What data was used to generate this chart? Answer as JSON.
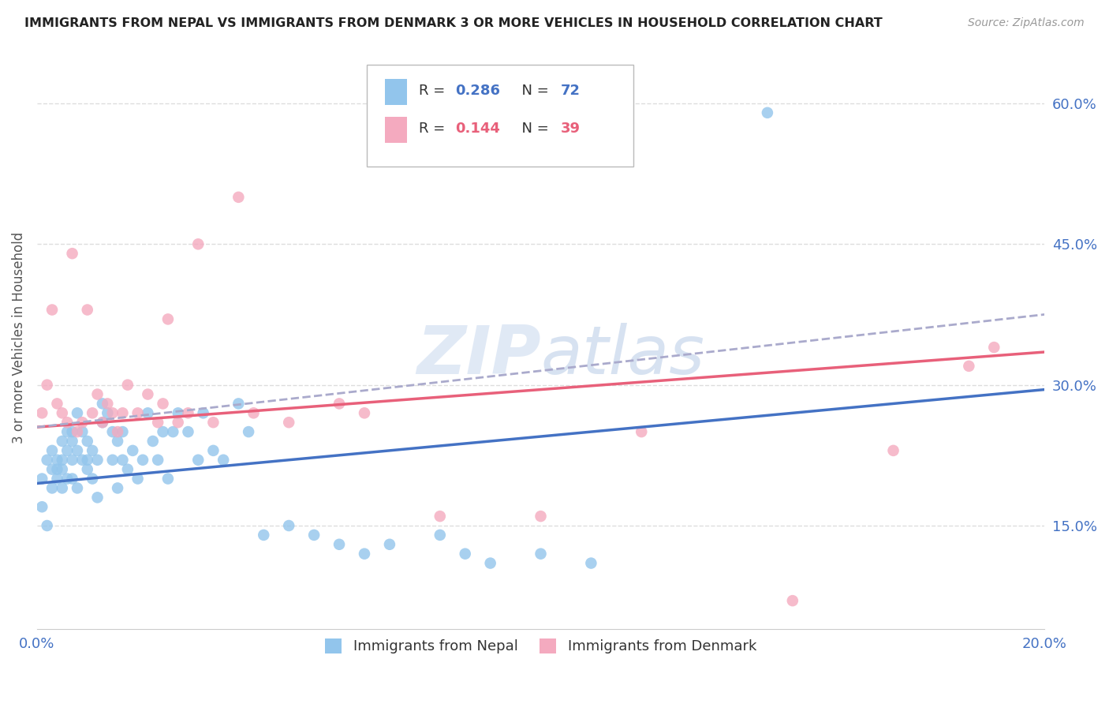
{
  "title": "IMMIGRANTS FROM NEPAL VS IMMIGRANTS FROM DENMARK 3 OR MORE VEHICLES IN HOUSEHOLD CORRELATION CHART",
  "source": "Source: ZipAtlas.com",
  "ylabel": "3 or more Vehicles in Household",
  "xlim": [
    0.0,
    0.2
  ],
  "ylim": [
    0.04,
    0.66
  ],
  "yticks_right": [
    0.15,
    0.3,
    0.45,
    0.6
  ],
  "ytick_right_labels": [
    "15.0%",
    "30.0%",
    "45.0%",
    "60.0%"
  ],
  "legend_nepal": "Immigrants from Nepal",
  "legend_denmark": "Immigrants from Denmark",
  "R_nepal": 0.286,
  "N_nepal": 72,
  "R_denmark": 0.144,
  "N_denmark": 39,
  "nepal_color": "#92C5EC",
  "denmark_color": "#F4AABF",
  "nepal_line_color": "#4472C4",
  "denmark_line_color": "#E8607A",
  "dashed_color": "#AAAACC",
  "nepal_scatter_x": [
    0.001,
    0.001,
    0.002,
    0.002,
    0.003,
    0.003,
    0.003,
    0.004,
    0.004,
    0.004,
    0.005,
    0.005,
    0.005,
    0.005,
    0.006,
    0.006,
    0.006,
    0.007,
    0.007,
    0.007,
    0.007,
    0.008,
    0.008,
    0.008,
    0.009,
    0.009,
    0.01,
    0.01,
    0.01,
    0.011,
    0.011,
    0.012,
    0.012,
    0.013,
    0.013,
    0.014,
    0.015,
    0.015,
    0.016,
    0.016,
    0.017,
    0.017,
    0.018,
    0.019,
    0.02,
    0.021,
    0.022,
    0.023,
    0.024,
    0.025,
    0.026,
    0.027,
    0.028,
    0.03,
    0.032,
    0.033,
    0.035,
    0.037,
    0.04,
    0.042,
    0.045,
    0.05,
    0.055,
    0.06,
    0.065,
    0.07,
    0.08,
    0.085,
    0.09,
    0.1,
    0.11,
    0.145
  ],
  "nepal_scatter_y": [
    0.2,
    0.17,
    0.22,
    0.15,
    0.23,
    0.21,
    0.19,
    0.22,
    0.2,
    0.21,
    0.22,
    0.24,
    0.21,
    0.19,
    0.25,
    0.23,
    0.2,
    0.25,
    0.22,
    0.24,
    0.2,
    0.27,
    0.23,
    0.19,
    0.25,
    0.22,
    0.24,
    0.21,
    0.22,
    0.23,
    0.2,
    0.22,
    0.18,
    0.26,
    0.28,
    0.27,
    0.25,
    0.22,
    0.24,
    0.19,
    0.25,
    0.22,
    0.21,
    0.23,
    0.2,
    0.22,
    0.27,
    0.24,
    0.22,
    0.25,
    0.2,
    0.25,
    0.27,
    0.25,
    0.22,
    0.27,
    0.23,
    0.22,
    0.28,
    0.25,
    0.14,
    0.15,
    0.14,
    0.13,
    0.12,
    0.13,
    0.14,
    0.12,
    0.11,
    0.12,
    0.11,
    0.59
  ],
  "denmark_scatter_x": [
    0.001,
    0.002,
    0.003,
    0.004,
    0.005,
    0.006,
    0.007,
    0.008,
    0.009,
    0.01,
    0.011,
    0.012,
    0.013,
    0.014,
    0.015,
    0.016,
    0.017,
    0.018,
    0.02,
    0.022,
    0.024,
    0.025,
    0.026,
    0.028,
    0.03,
    0.032,
    0.035,
    0.04,
    0.043,
    0.05,
    0.06,
    0.065,
    0.08,
    0.1,
    0.12,
    0.15,
    0.17,
    0.185,
    0.19
  ],
  "denmark_scatter_y": [
    0.27,
    0.3,
    0.38,
    0.28,
    0.27,
    0.26,
    0.44,
    0.25,
    0.26,
    0.38,
    0.27,
    0.29,
    0.26,
    0.28,
    0.27,
    0.25,
    0.27,
    0.3,
    0.27,
    0.29,
    0.26,
    0.28,
    0.37,
    0.26,
    0.27,
    0.45,
    0.26,
    0.5,
    0.27,
    0.26,
    0.28,
    0.27,
    0.16,
    0.16,
    0.25,
    0.07,
    0.23,
    0.32,
    0.34
  ],
  "nepal_trend_x0": 0.0,
  "nepal_trend_x1": 0.2,
  "nepal_trend_y0": 0.195,
  "nepal_trend_y1": 0.295,
  "denmark_trend_y0": 0.255,
  "denmark_trend_y1": 0.335,
  "dashed_trend_y0": 0.255,
  "dashed_trend_y1": 0.375,
  "background_color": "#FFFFFF",
  "grid_color": "#DDDDDD"
}
